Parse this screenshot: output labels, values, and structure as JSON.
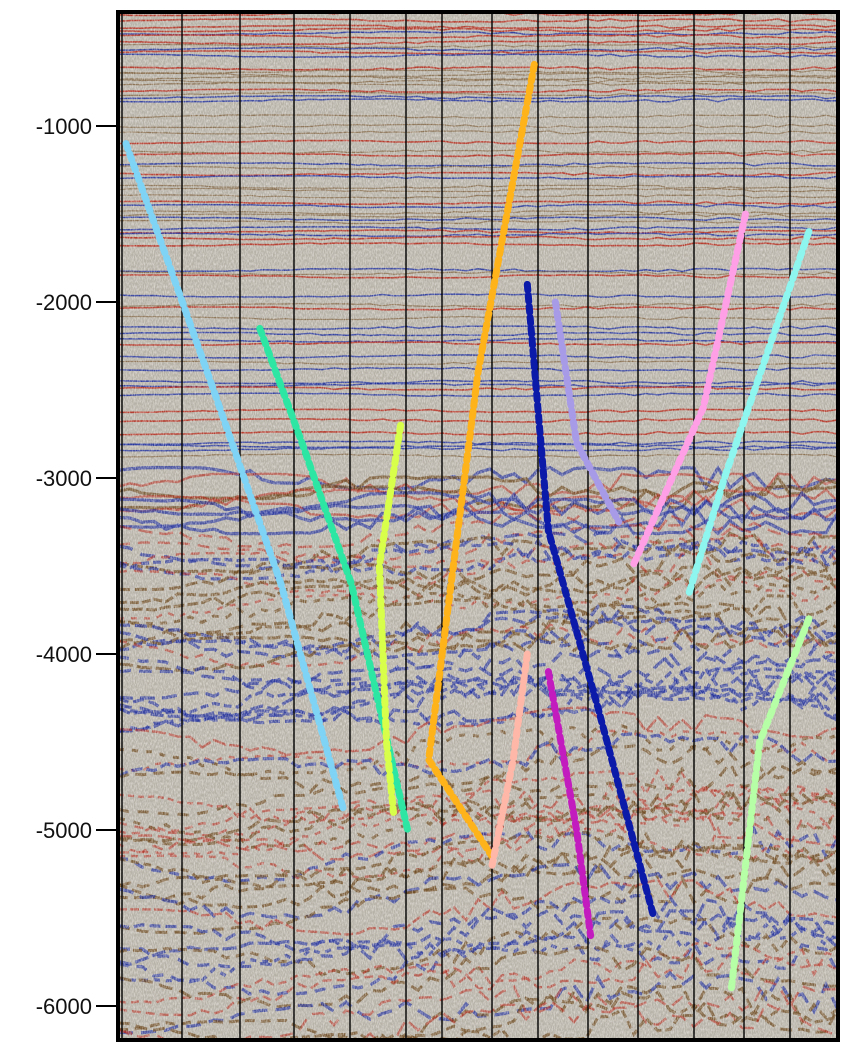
{
  "depth_axis": {
    "ticks": [
      "-1000",
      "-2000",
      "-3000",
      "-4000",
      "-5000",
      "-6000"
    ],
    "tick_values": [
      -1000,
      -2000,
      -3000,
      -4000,
      -5000,
      -6000
    ]
  },
  "colors": {
    "background": "#ffffff",
    "panel_bg": "#b7b2a8",
    "red_reflector": "#b4281a",
    "blue_reflector": "#1f2f9c",
    "brown_reflector": "#6e4a20",
    "trace_line": "#000000"
  },
  "faults": [
    {
      "name": "fault-light-blue",
      "color": "#7fd3f4",
      "points": [
        [
          0,
          -1100
        ],
        [
          0.12,
          -2450
        ],
        [
          0.22,
          -3600
        ],
        [
          0.31,
          -4900
        ]
      ]
    },
    {
      "name": "fault-teal",
      "color": "#2ee6a3",
      "points": [
        [
          0.19,
          -2150
        ],
        [
          0.25,
          -2800
        ],
        [
          0.32,
          -3600
        ],
        [
          0.4,
          -5000
        ]
      ]
    },
    {
      "name": "fault-yellow-green",
      "color": "#d8ff4a",
      "points": [
        [
          0.39,
          -2700
        ],
        [
          0.36,
          -3500
        ],
        [
          0.37,
          -4500
        ],
        [
          0.38,
          -4900
        ]
      ]
    },
    {
      "name": "fault-orange",
      "color": "#ffb31a",
      "points": [
        [
          0.58,
          -650
        ],
        [
          0.5,
          -2400
        ],
        [
          0.43,
          -4600
        ],
        [
          0.52,
          -5150
        ]
      ]
    },
    {
      "name": "fault-navy",
      "color": "#0b1aa8",
      "points": [
        [
          0.57,
          -1900
        ],
        [
          0.6,
          -3300
        ],
        [
          0.67,
          -4300
        ],
        [
          0.75,
          -5500
        ]
      ]
    },
    {
      "name": "fault-lavender",
      "color": "#a79be8",
      "points": [
        [
          0.61,
          -2000
        ],
        [
          0.64,
          -2800
        ],
        [
          0.7,
          -3250
        ]
      ]
    },
    {
      "name": "fault-pink",
      "color": "#ff9fe6",
      "points": [
        [
          0.88,
          -1500
        ],
        [
          0.82,
          -2600
        ],
        [
          0.72,
          -3500
        ]
      ]
    },
    {
      "name": "fault-cyan",
      "color": "#8ef6ef",
      "points": [
        [
          0.97,
          -1600
        ],
        [
          0.85,
          -3000
        ],
        [
          0.8,
          -3650
        ]
      ]
    },
    {
      "name": "fault-salmon",
      "color": "#ffb7a8",
      "points": [
        [
          0.57,
          -4000
        ],
        [
          0.55,
          -4600
        ],
        [
          0.52,
          -5200
        ]
      ]
    },
    {
      "name": "fault-magenta",
      "color": "#c21cbf",
      "points": [
        [
          0.6,
          -4100
        ],
        [
          0.64,
          -5000
        ],
        [
          0.66,
          -5600
        ]
      ]
    },
    {
      "name": "fault-mint",
      "color": "#b6ffa6",
      "points": [
        [
          0.97,
          -3800
        ],
        [
          0.9,
          -4500
        ],
        [
          0.86,
          -5900
        ]
      ]
    }
  ]
}
